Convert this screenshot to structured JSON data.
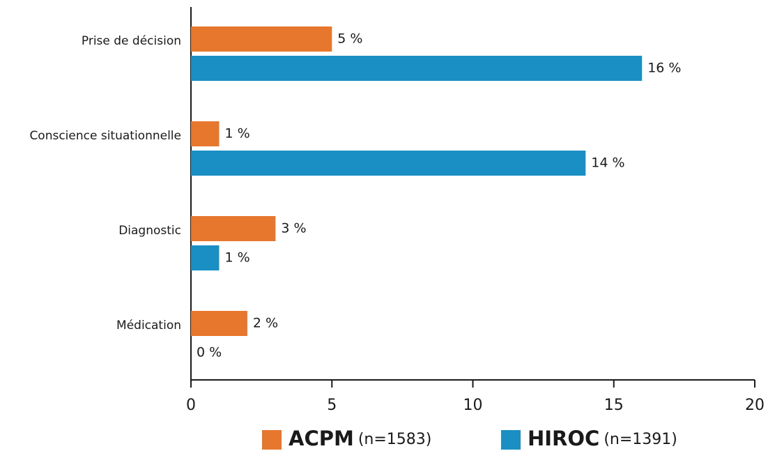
{
  "chart_data": {
    "type": "bar",
    "orientation": "horizontal",
    "categories": [
      "Prise de décision",
      "Conscience situationnelle",
      "Diagnostic",
      "Médication"
    ],
    "series": [
      {
        "name": "ACPM",
        "sample": "(n=1583)",
        "color": "#e8772e",
        "values": [
          5,
          1,
          3,
          2
        ],
        "value_labels": [
          "5 %",
          "1 %",
          "3 %",
          "2 %"
        ]
      },
      {
        "name": "HIROC",
        "sample": "(n=1391)",
        "color": "#1a8fc4",
        "values": [
          16,
          14,
          1,
          0
        ],
        "value_labels": [
          "16 %",
          "14 %",
          "1 %",
          "0 %"
        ]
      }
    ],
    "xlim": [
      0,
      20
    ],
    "xticks": [
      0,
      5,
      10,
      15,
      20
    ],
    "legend": "bottom"
  }
}
